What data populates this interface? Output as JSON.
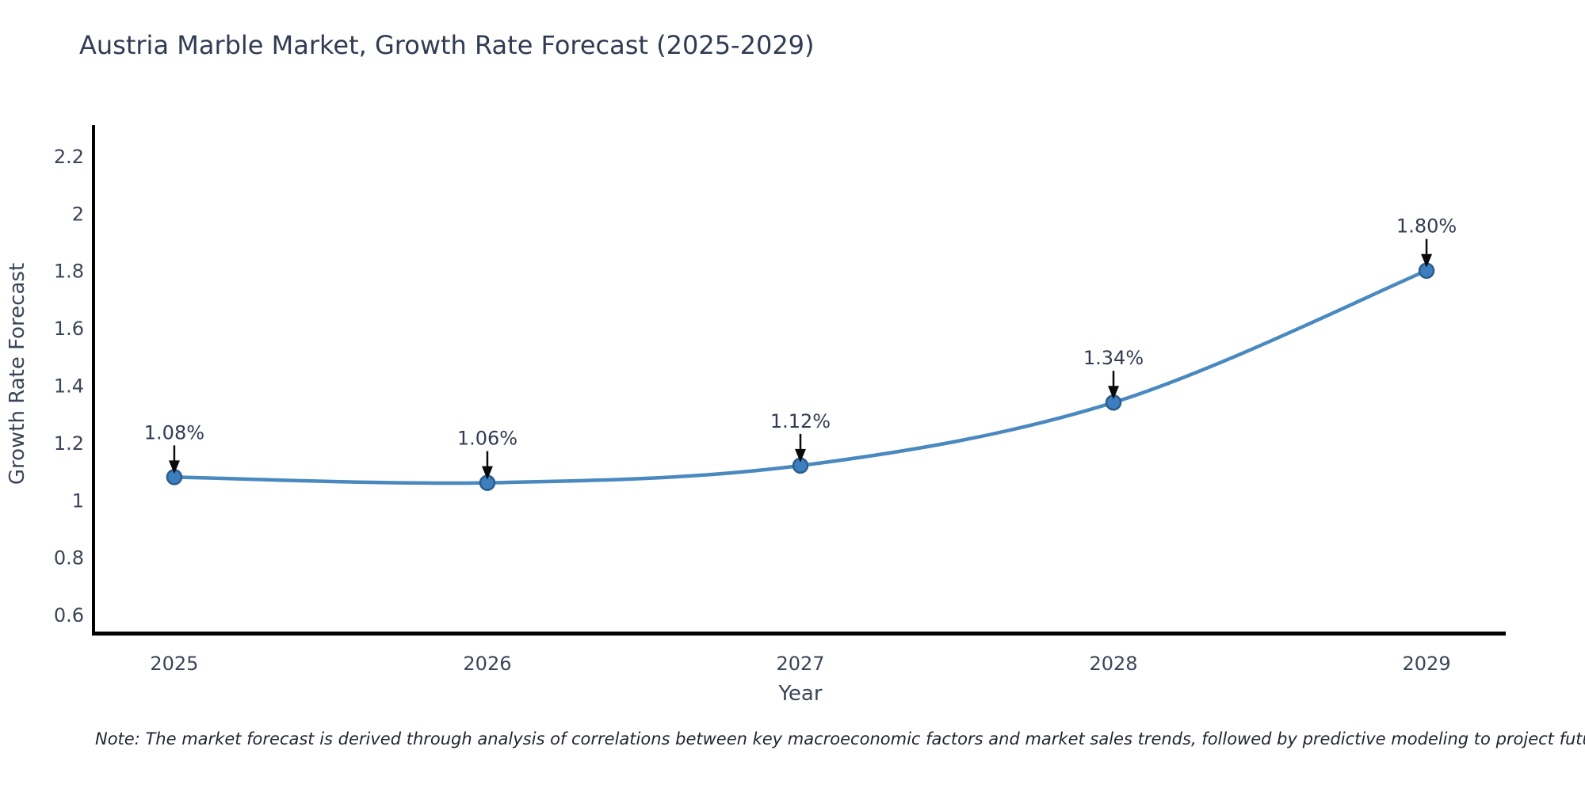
{
  "title": "Austria Marble Market, Growth Rate Forecast (2025-2029)",
  "note": "Note: The market forecast is derived through analysis of correlations between key macroeconomic factors and market sales trends, followed by predictive modeling to project future sales",
  "chart_data": {
    "type": "line",
    "title": "Austria Marble Market, Growth Rate Forecast (2025-2029)",
    "xlabel": "Year",
    "ylabel": "Growth Rate Forecast",
    "x": [
      2025,
      2026,
      2027,
      2028,
      2029
    ],
    "values": [
      1.08,
      1.06,
      1.12,
      1.34,
      1.8
    ],
    "point_labels": [
      "1.08%",
      "1.06%",
      "1.12%",
      "1.34%",
      "1.80%"
    ],
    "xticks": [
      "2025",
      "2026",
      "2027",
      "2028",
      "2029"
    ],
    "yticks": [
      "0.6",
      "0.8",
      "1",
      "1.2",
      "1.4",
      "1.6",
      "1.8",
      "2",
      "2.2"
    ],
    "ytick_values": [
      0.6,
      0.8,
      1.0,
      1.2,
      1.4,
      1.6,
      1.8,
      2.0,
      2.2
    ],
    "xlim": [
      2024.742,
      2029.253
    ],
    "ylim": [
      0.534,
      2.302
    ],
    "grid": false,
    "legend": "none",
    "colors": {
      "line": "#4a89bf",
      "marker_fill": "#3d7ebf",
      "marker_edge": "#2a5d8c",
      "arrow": "#0a0a0a",
      "spine": "#000000",
      "title_text": "#313c52",
      "tick_text": "#3a4557",
      "note_text": "#1f2430"
    }
  }
}
